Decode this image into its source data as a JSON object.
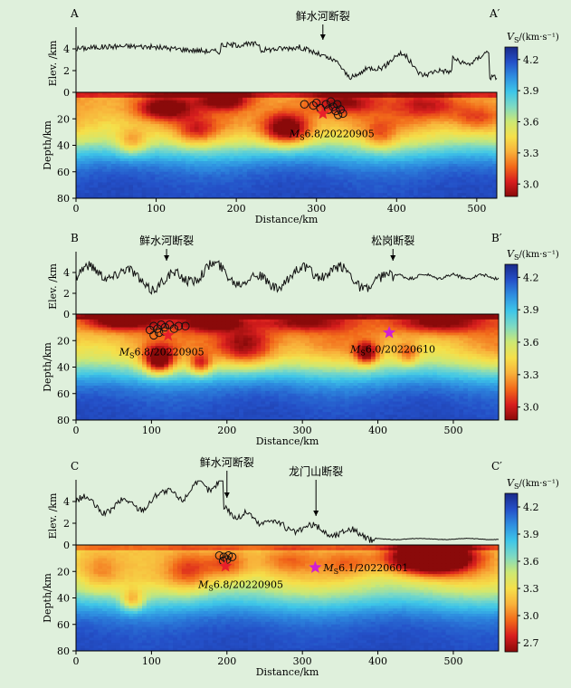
{
  "colors": {
    "background": "#dff0dc",
    "topo_line": "#111111",
    "star_red": "#e8202a",
    "star_magenta": "#d11fd1",
    "circle": "#111111"
  },
  "colormap": [
    "#8a0a0a",
    "#d81e1e",
    "#f26a1a",
    "#f8b13a",
    "#f5e04a",
    "#cde873",
    "#7fdac2",
    "#3ec6e8",
    "#2e8fe0",
    "#2450c8",
    "#1a2a8a"
  ],
  "chart_data": [
    {
      "type": "heatmap",
      "panel_label": "A",
      "panel_label_end": "A′",
      "ylabel_top": "Elev. /km",
      "ylabel_bottom": "Depth/km",
      "xlabel": "Distance/km",
      "xlim": [
        0,
        525
      ],
      "xticks": [
        0,
        100,
        200,
        300,
        400,
        500
      ],
      "elev_lim": [
        0,
        6
      ],
      "elev_ticks": [
        0,
        2,
        4
      ],
      "depth_lim": [
        0,
        80
      ],
      "depth_ticks": [
        0,
        20,
        40,
        60,
        80
      ],
      "fault_labels": [
        {
          "text": "鲜水河断裂",
          "x": 308
        }
      ],
      "quakes": [
        {
          "type": "Ms",
          "label_sub": "S",
          "label_rest": "6.8/20220905",
          "x": 308,
          "depth": 16,
          "color": "red"
        }
      ],
      "aftershocks": [
        [
          285,
          9
        ],
        [
          296,
          10
        ],
        [
          300,
          8
        ],
        [
          305,
          12
        ],
        [
          312,
          9
        ],
        [
          318,
          7
        ],
        [
          321,
          11
        ],
        [
          324,
          14
        ],
        [
          326,
          9
        ],
        [
          330,
          13
        ],
        [
          333,
          16
        ],
        [
          327,
          17
        ],
        [
          315,
          13
        ]
      ],
      "colorbar": {
        "label_main": "V",
        "label_sub": "S",
        "label_unit": "/(km·s⁻¹)",
        "ticks": [
          4.2,
          3.9,
          3.6,
          3.3,
          3.0
        ],
        "vmin": 2.88,
        "vmax": 4.32
      },
      "anomalies": [
        [
          263,
          28,
          30,
          12,
          -0.75
        ],
        [
          110,
          12,
          35,
          9,
          -0.55
        ],
        [
          185,
          6,
          30,
          7,
          -0.5
        ],
        [
          330,
          8,
          40,
          8,
          -0.4
        ],
        [
          70,
          38,
          20,
          10,
          -0.35
        ],
        [
          150,
          30,
          25,
          10,
          -0.3
        ],
        [
          440,
          10,
          40,
          10,
          -0.3
        ],
        [
          500,
          20,
          30,
          10,
          -0.3
        ],
        [
          380,
          34,
          20,
          10,
          -0.25
        ]
      ],
      "topo_base": 3.8,
      "topo_shape": "A"
    },
    {
      "type": "heatmap",
      "panel_label": "B",
      "panel_label_end": "B′",
      "ylabel_top": "Elev. /km",
      "ylabel_bottom": "Depth/km",
      "xlabel": "Distance/km",
      "xlim": [
        0,
        560
      ],
      "xticks": [
        0,
        100,
        200,
        300,
        400,
        500
      ],
      "elev_lim": [
        0,
        6
      ],
      "elev_ticks": [
        0,
        2,
        4
      ],
      "depth_lim": [
        0,
        80
      ],
      "depth_ticks": [
        0,
        20,
        40,
        60,
        80
      ],
      "fault_labels": [
        {
          "text": "鲜水河断裂",
          "x": 120
        },
        {
          "text": "松岗断裂",
          "x": 420
        }
      ],
      "quakes": [
        {
          "type": "Ms",
          "label_sub": "S",
          "label_rest": "6.8/20220905",
          "x": 122,
          "depth": 16,
          "color": "red"
        },
        {
          "type": "Ms",
          "label_sub": "S",
          "label_rest": "6.0/20220610",
          "x": 415,
          "depth": 14,
          "color": "magenta"
        }
      ],
      "aftershocks": [
        [
          98,
          12
        ],
        [
          103,
          9
        ],
        [
          108,
          11
        ],
        [
          113,
          8
        ],
        [
          118,
          10
        ],
        [
          124,
          8
        ],
        [
          130,
          11
        ],
        [
          136,
          9
        ],
        [
          145,
          9
        ],
        [
          103,
          16
        ],
        [
          110,
          14
        ],
        [
          117,
          13
        ]
      ],
      "colorbar": {
        "label_main": "V",
        "label_sub": "S",
        "label_unit": "/(km·s⁻¹)",
        "ticks": [
          4.2,
          3.9,
          3.6,
          3.3,
          3.0
        ],
        "vmin": 2.88,
        "vmax": 4.32
      },
      "anomalies": [
        [
          110,
          35,
          20,
          10,
          -0.8
        ],
        [
          165,
          38,
          15,
          8,
          -0.5
        ],
        [
          225,
          25,
          40,
          15,
          -0.55
        ],
        [
          385,
          30,
          15,
          8,
          -0.6
        ],
        [
          440,
          30,
          15,
          8,
          -0.35
        ],
        [
          60,
          5,
          50,
          7,
          -0.6
        ],
        [
          180,
          6,
          40,
          7,
          -0.55
        ],
        [
          300,
          6,
          60,
          7,
          -0.4
        ],
        [
          480,
          6,
          60,
          8,
          -0.5
        ]
      ],
      "topo_base": 3.5,
      "topo_shape": "B"
    },
    {
      "type": "heatmap",
      "panel_label": "C",
      "panel_label_end": "C′",
      "ylabel_top": "Elev. /km",
      "ylabel_bottom": "Depth/km",
      "xlabel": "Distance/km",
      "xlim": [
        0,
        560
      ],
      "xticks": [
        0,
        100,
        200,
        300,
        400,
        500
      ],
      "elev_lim": [
        0,
        6
      ],
      "elev_ticks": [
        0,
        2,
        4
      ],
      "depth_lim": [
        0,
        80
      ],
      "depth_ticks": [
        0,
        20,
        40,
        60,
        80
      ],
      "fault_labels": [
        {
          "text": "鲜水河断裂",
          "x": 200
        },
        {
          "text": "龙门山断裂",
          "x": 318
        }
      ],
      "quakes": [
        {
          "type": "Ms",
          "label_sub": "S",
          "label_rest": "6.8/20220905",
          "x": 198,
          "depth": 16,
          "color": "red"
        },
        {
          "type": "Ms",
          "label_sub": "S",
          "label_rest": "6.1/20220601",
          "x": 317,
          "depth": 17,
          "color": "magenta"
        }
      ],
      "aftershocks": [
        [
          190,
          8
        ],
        [
          196,
          9
        ],
        [
          202,
          8
        ],
        [
          207,
          9
        ],
        [
          195,
          12
        ],
        [
          200,
          11
        ]
      ],
      "colorbar": {
        "label_main": "V",
        "label_sub": "S",
        "label_unit": "/(km·s⁻¹)",
        "ticks": [
          4.2,
          3.9,
          3.6,
          3.3,
          3.0,
          2.7
        ],
        "vmin": 2.6,
        "vmax": 4.35
      },
      "anomalies": [
        [
          470,
          10,
          55,
          12,
          -1.45
        ],
        [
          75,
          42,
          15,
          8,
          -0.5
        ],
        [
          150,
          20,
          30,
          15,
          -0.45
        ],
        [
          200,
          15,
          30,
          12,
          -0.45
        ],
        [
          280,
          12,
          40,
          10,
          -0.3
        ],
        [
          360,
          14,
          35,
          10,
          -0.3
        ],
        [
          30,
          20,
          30,
          15,
          -0.3
        ]
      ],
      "topo_base": 0,
      "topo_shape": "C"
    }
  ]
}
